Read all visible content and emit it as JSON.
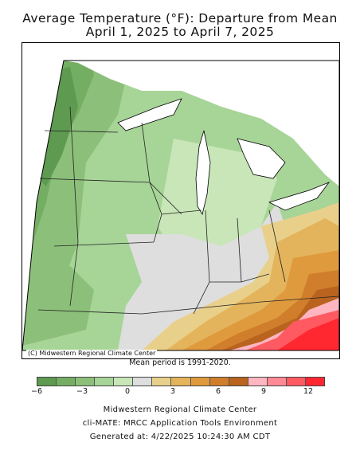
{
  "title": {
    "line1": "Average Temperature (°F): Departure from Mean",
    "line2": "April 1, 2025 to April 7, 2025"
  },
  "map": {
    "copyright": "(C) Midwestern Regional Climate Center",
    "colors": {
      "water": "#ffffff",
      "border": "#000000",
      "state_line": "#333333"
    }
  },
  "mean_period": "Mean period is 1991-2020.",
  "legend": {
    "colors": [
      "#5e9a50",
      "#74ae63",
      "#8cc07a",
      "#a7d497",
      "#c8e6b8",
      "#dedede",
      "#e9d08a",
      "#e4b45c",
      "#df9a3e",
      "#d07e2c",
      "#b9631f",
      "#ffb6c1",
      "#ff8a94",
      "#ff5a62",
      "#ff2830"
    ],
    "ticks": [
      "−6",
      "−3",
      "0",
      "3",
      "6",
      "9",
      "12"
    ]
  },
  "footer": {
    "line1": "Midwestern Regional Climate Center",
    "line2": "cli-MATE: MRCC Application Tools Environment",
    "line3": "Generated at: 4/22/2025 10:24:30 AM CDT"
  }
}
